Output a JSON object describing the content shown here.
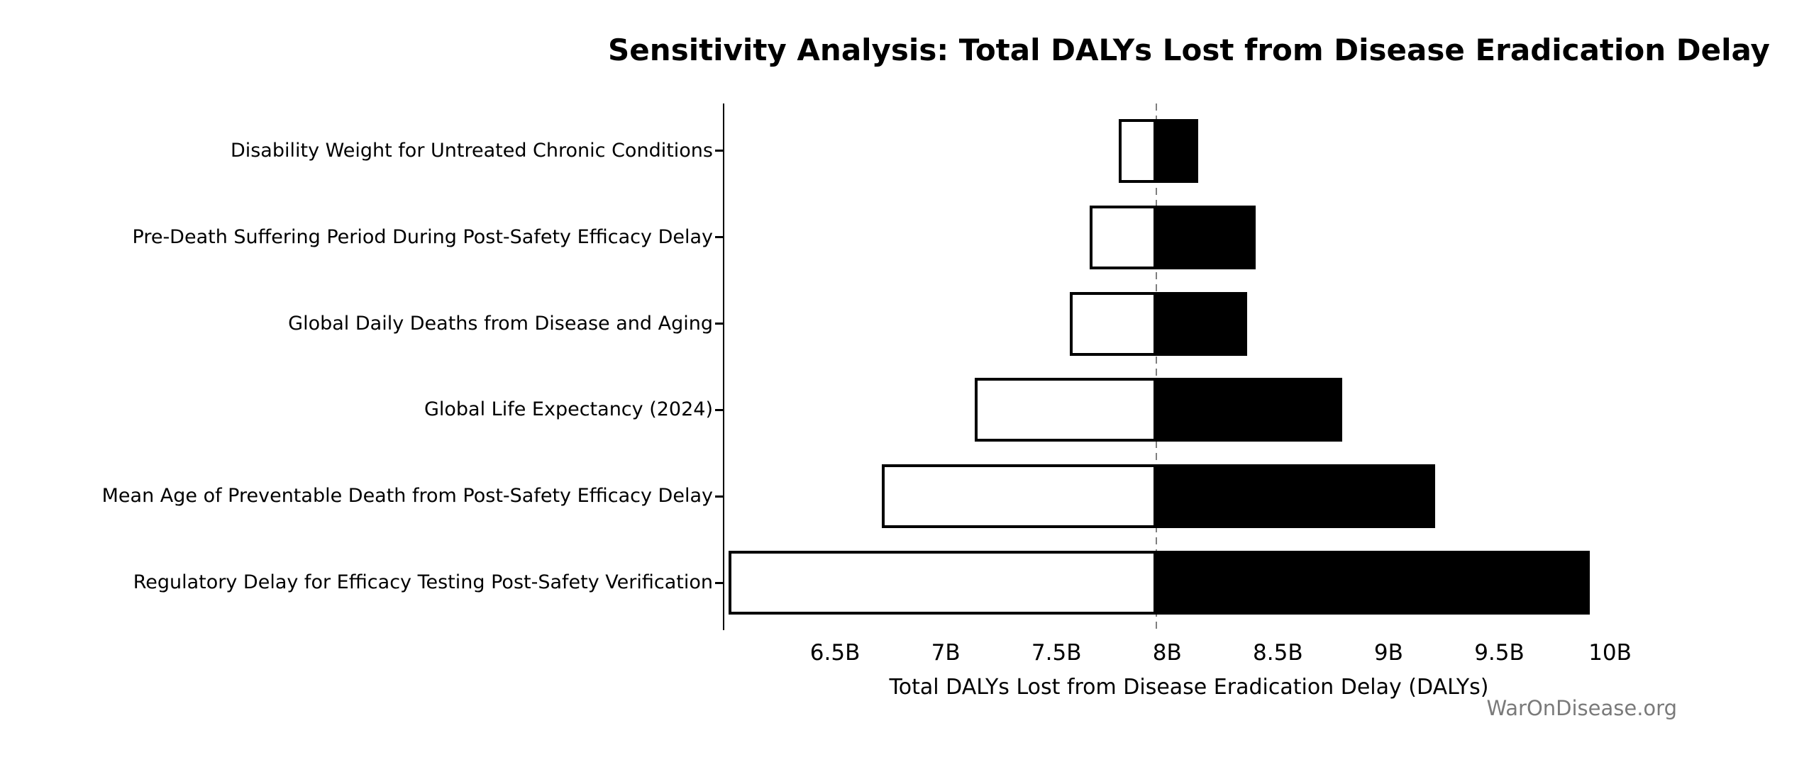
{
  "watermark": "WarOnDisease.org",
  "chart_data": {
    "type": "bar",
    "subtype": "tornado",
    "orientation": "horizontal",
    "title": "Sensitivity Analysis: Total DALYs Lost from Disease Eradication Delay",
    "xlabel": "Total DALYs Lost from Disease Eradication Delay (DALYs)",
    "grid": false,
    "legend": false,
    "xlim_billions": [
      6.0,
      10.2
    ],
    "baseline_billions": 7.95,
    "xtick_values_billions": [
      6.5,
      7.0,
      7.5,
      8.0,
      8.5,
      9.0,
      9.5,
      10.0
    ],
    "xtick_labels": [
      "6.5B",
      "7B",
      "7.5B",
      "8B",
      "8.5B",
      "9B",
      "9.5B",
      "10B"
    ],
    "categories": [
      "Disability Weight for Untreated Chronic Conditions",
      "Pre-Death Suffering Period During Post-Safety Efficacy Delay",
      "Global Daily Deaths from Disease and Aging",
      "Global Life Expectancy (2024)",
      "Mean Age of Preventable Death from Post-Safety Efficacy Delay",
      "Regulatory Delay for Efficacy Testing Post-Safety Verification"
    ],
    "series": [
      {
        "name": "low",
        "fill": "#ffffff",
        "values_billions": [
          7.78,
          7.65,
          7.56,
          7.13,
          6.71,
          6.02
        ]
      },
      {
        "name": "high",
        "fill": "#000000",
        "values_billions": [
          8.14,
          8.4,
          8.36,
          8.79,
          9.21,
          9.91
        ]
      }
    ],
    "colors": {
      "bar_edge": "#000000",
      "baseline_line": "#7f7f7f",
      "text": "#000000",
      "watermark": "#7a7a7a",
      "background": "#ffffff"
    }
  }
}
